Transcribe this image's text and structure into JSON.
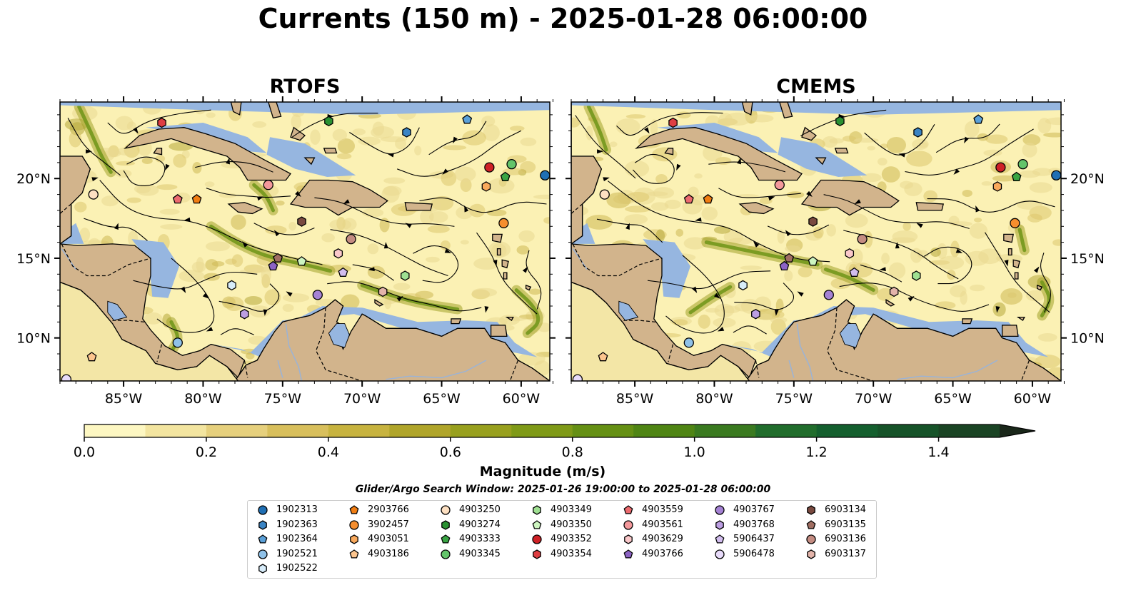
{
  "title": "Currents (150 m) - 2025-01-28 06:00:00",
  "panels": [
    {
      "title": "RTOFS"
    },
    {
      "title": "CMEMS"
    }
  ],
  "axes": {
    "lon_ticks": [
      {
        "value": -85,
        "label": "85°W"
      },
      {
        "value": -80,
        "label": "80°W"
      },
      {
        "value": -75,
        "label": "75°W"
      },
      {
        "value": -70,
        "label": "70°W"
      },
      {
        "value": -65,
        "label": "65°W"
      },
      {
        "value": -60,
        "label": "60°W"
      }
    ],
    "lat_ticks": [
      {
        "value": 10,
        "label": "10°N"
      },
      {
        "value": 15,
        "label": "15°N"
      },
      {
        "value": 20,
        "label": "20°N"
      }
    ],
    "lon_range": [
      -89,
      -58.2
    ],
    "lat_range": [
      7.3,
      24.8
    ]
  },
  "colorbar": {
    "label": "Magnitude (m/s)",
    "ticks": [
      {
        "value": 0.0,
        "label": "0.0"
      },
      {
        "value": 0.2,
        "label": "0.2"
      },
      {
        "value": 0.4,
        "label": "0.4"
      },
      {
        "value": 0.6,
        "label": "0.6"
      },
      {
        "value": 0.8,
        "label": "0.8"
      },
      {
        "value": 1.0,
        "label": "1.0"
      },
      {
        "value": 1.2,
        "label": "1.2"
      },
      {
        "value": 1.4,
        "label": "1.4"
      }
    ],
    "range": [
      0,
      1.5
    ],
    "colors": [
      "#fdf7c2",
      "#f3e5a0",
      "#e6d07d",
      "#d8bf5c",
      "#c7b33f",
      "#b0a52a",
      "#98a01e",
      "#7f9a17",
      "#659014",
      "#4f8514",
      "#3a7a20",
      "#216d2c",
      "#145f2e",
      "#165329",
      "#1a4424",
      "#1b3520",
      "#1a271a"
    ]
  },
  "colors": {
    "land": "#d2b48c",
    "ocean": "#96b6e0",
    "field_low": "#fbf1b4"
  },
  "search_window": "Glider/Argo Search Window: 2025-01-26 19:00:00 to 2025-01-28 06:00:00",
  "legend": [
    {
      "label": "1902313",
      "color": "#1f6fb4",
      "marker": "circle"
    },
    {
      "label": "1902363",
      "color": "#3a84c4",
      "marker": "hexagon"
    },
    {
      "label": "1902364",
      "color": "#5aa0d8",
      "marker": "pentagon"
    },
    {
      "label": "1902521",
      "color": "#8fc1e8",
      "marker": "circle"
    },
    {
      "label": "1902522",
      "color": "#d7ecfa",
      "marker": "hexagon"
    },
    {
      "label": "2903766",
      "color": "#f07d12",
      "marker": "pentagon"
    },
    {
      "label": "3902457",
      "color": "#f68e2e",
      "marker": "circle"
    },
    {
      "label": "4903051",
      "color": "#f9a95c",
      "marker": "hexagon"
    },
    {
      "label": "4903186",
      "color": "#fcc58e",
      "marker": "pentagon"
    },
    {
      "label": "4903250",
      "color": "#fde0c2",
      "marker": "circle"
    },
    {
      "label": "4903274",
      "color": "#2a9132",
      "marker": "hexagon"
    },
    {
      "label": "4903333",
      "color": "#3aa544",
      "marker": "pentagon"
    },
    {
      "label": "4903345",
      "color": "#63c46a",
      "marker": "circle"
    },
    {
      "label": "4903349",
      "color": "#9fe092",
      "marker": "hexagon"
    },
    {
      "label": "4903350",
      "color": "#cdf5c0",
      "marker": "pentagon"
    },
    {
      "label": "4903352",
      "color": "#cf2126",
      "marker": "circle"
    },
    {
      "label": "4903354",
      "color": "#de3e42",
      "marker": "hexagon"
    },
    {
      "label": "4903559",
      "color": "#ec6a6e",
      "marker": "pentagon"
    },
    {
      "label": "4903561",
      "color": "#f3989b",
      "marker": "circle"
    },
    {
      "label": "4903629",
      "color": "#fac8ca",
      "marker": "hexagon"
    },
    {
      "label": "4903766",
      "color": "#8c63c4",
      "marker": "pentagon"
    },
    {
      "label": "4903767",
      "color": "#a582d4",
      "marker": "circle"
    },
    {
      "label": "4903768",
      "color": "#bc9ee2",
      "marker": "hexagon"
    },
    {
      "label": "5906437",
      "color": "#d2bdee",
      "marker": "pentagon"
    },
    {
      "label": "5906478",
      "color": "#e8dbfa",
      "marker": "circle"
    },
    {
      "label": "6903134",
      "color": "#7a4a40",
      "marker": "hexagon"
    },
    {
      "label": "6903135",
      "color": "#a06e62",
      "marker": "pentagon"
    },
    {
      "label": "6903136",
      "color": "#c48c82",
      "marker": "circle"
    },
    {
      "label": "6903137",
      "color": "#e3b4aa",
      "marker": "hexagon"
    }
  ],
  "floats": [
    {
      "id": "1902313",
      "lon": -58.5,
      "lat": 20.2
    },
    {
      "id": "1902363",
      "lon": -67.2,
      "lat": 22.9
    },
    {
      "id": "1902364",
      "lon": -63.4,
      "lat": 23.7
    },
    {
      "id": "1902521",
      "lon": -81.6,
      "lat": 9.7
    },
    {
      "id": "1902522",
      "lon": -78.2,
      "lat": 13.3
    },
    {
      "id": "2903766",
      "lon": -80.4,
      "lat": 18.7
    },
    {
      "id": "3902457",
      "lon": -61.1,
      "lat": 17.2
    },
    {
      "id": "4903051",
      "lon": -62.2,
      "lat": 19.5
    },
    {
      "id": "4903186",
      "lon": -87.0,
      "lat": 8.8
    },
    {
      "id": "4903250",
      "lon": -86.9,
      "lat": 19.0
    },
    {
      "id": "4903274",
      "lon": -72.1,
      "lat": 23.6
    },
    {
      "id": "4903333",
      "lon": -61.0,
      "lat": 20.1
    },
    {
      "id": "4903345",
      "lon": -60.6,
      "lat": 20.9
    },
    {
      "id": "4903349",
      "lon": -67.3,
      "lat": 13.9
    },
    {
      "id": "4903350",
      "lon": -73.8,
      "lat": 14.8
    },
    {
      "id": "4903352",
      "lon": -62.0,
      "lat": 20.7
    },
    {
      "id": "4903354",
      "lon": -82.6,
      "lat": 23.5
    },
    {
      "id": "4903559",
      "lon": -81.6,
      "lat": 18.7
    },
    {
      "id": "4903561",
      "lon": -75.9,
      "lat": 19.6
    },
    {
      "id": "4903629",
      "lon": -71.5,
      "lat": 15.3
    },
    {
      "id": "4903766",
      "lon": -75.6,
      "lat": 14.5
    },
    {
      "id": "4903767",
      "lon": -72.8,
      "lat": 12.7
    },
    {
      "id": "4903768",
      "lon": -77.4,
      "lat": 11.5
    },
    {
      "id": "5906437",
      "lon": -71.2,
      "lat": 14.1
    },
    {
      "id": "5906478",
      "lon": -88.6,
      "lat": 7.4
    },
    {
      "id": "6903134",
      "lon": -73.8,
      "lat": 17.3
    },
    {
      "id": "6903135",
      "lon": -75.3,
      "lat": 15.0
    },
    {
      "id": "6903136",
      "lon": -70.7,
      "lat": 16.2
    },
    {
      "id": "6903137",
      "lon": -68.7,
      "lat": 12.9
    }
  ]
}
